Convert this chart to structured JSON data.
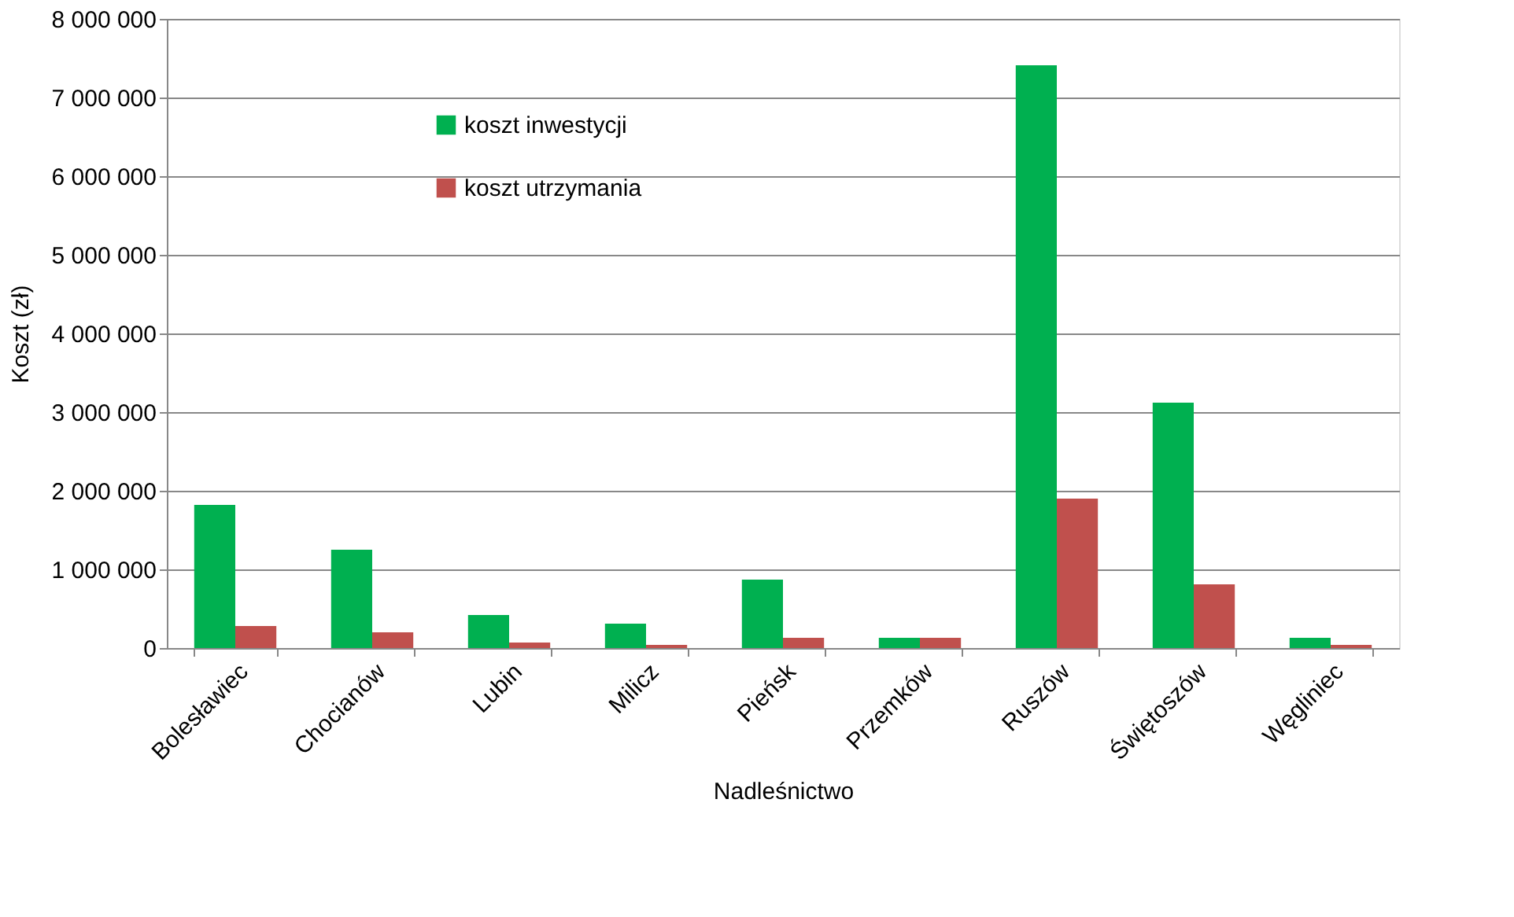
{
  "chart_data": {
    "type": "bar",
    "xlabel": "Nadleśnictwo",
    "ylabel": "Koszt (zł)",
    "categories": [
      "Bolesławiec",
      "Chocianów",
      "Lubin",
      "Milicz",
      "Pieńsk",
      "Przemków",
      "Ruszów",
      "Świętoszów",
      "Węgliniec"
    ],
    "series": [
      {
        "name": "koszt inwestycji",
        "color": "#00b050",
        "values": [
          1820000,
          1250000,
          420000,
          310000,
          870000,
          130000,
          7410000,
          3120000,
          130000
        ]
      },
      {
        "name": "koszt utrzymania",
        "color": "#c0504d",
        "values": [
          280000,
          200000,
          70000,
          40000,
          130000,
          130000,
          1900000,
          810000,
          40000
        ]
      }
    ],
    "ylim": [
      0,
      8000000
    ],
    "yticks": [
      {
        "value": 0,
        "label": "0"
      },
      {
        "value": 1000000,
        "label": "1 000 000"
      },
      {
        "value": 2000000,
        "label": "2 000 000"
      },
      {
        "value": 3000000,
        "label": "3 000 000"
      },
      {
        "value": 4000000,
        "label": "4 000 000"
      },
      {
        "value": 5000000,
        "label": "5 000 000"
      },
      {
        "value": 6000000,
        "label": "6 000 000"
      },
      {
        "value": 7000000,
        "label": "7 000 000"
      },
      {
        "value": 8000000,
        "label": "8 000 000"
      }
    ],
    "grid": "y",
    "legend": "top left"
  }
}
